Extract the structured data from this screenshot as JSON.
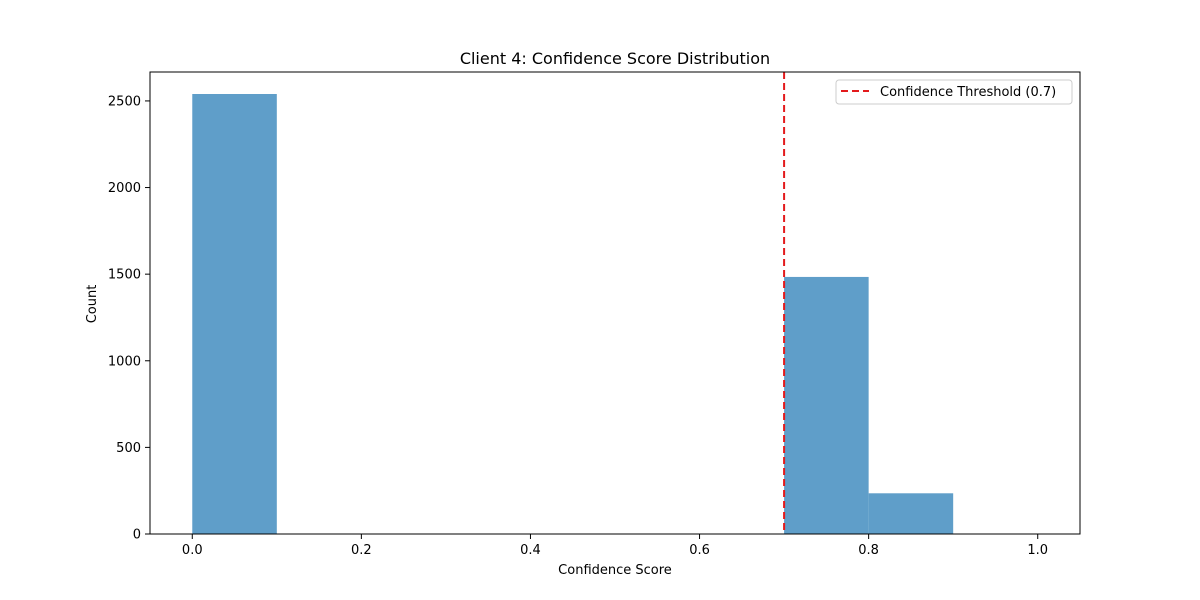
{
  "chart_data": {
    "type": "bar",
    "title": "Client 4: Confidence Score Distribution",
    "xlabel": "Confidence Score",
    "ylabel": "Count",
    "xlim": [
      -0.05,
      1.05
    ],
    "ylim": [
      0,
      2667
    ],
    "xticks": [
      0.0,
      0.2,
      0.4,
      0.6,
      0.8,
      1.0
    ],
    "xtick_labels": [
      "0.0",
      "0.2",
      "0.4",
      "0.6",
      "0.8",
      "1.0"
    ],
    "yticks": [
      0,
      500,
      1000,
      1500,
      2000,
      2500
    ],
    "ytick_labels": [
      "0",
      "500",
      "1000",
      "1500",
      "2000",
      "2500"
    ],
    "bins": [
      {
        "x0": 0.0,
        "x1": 0.1,
        "count": 2540
      },
      {
        "x0": 0.7,
        "x1": 0.8,
        "count": 1484
      },
      {
        "x0": 0.8,
        "x1": 0.9,
        "count": 235
      }
    ],
    "bar_color": "#5f9ec9",
    "grid": false,
    "threshold": {
      "value": 0.7,
      "label": "Confidence Threshold (0.7)",
      "color": "#e31a1c",
      "style": "dashed"
    },
    "legend": {
      "placement": "top-right",
      "entries": [
        "Confidence Threshold (0.7)"
      ]
    }
  }
}
